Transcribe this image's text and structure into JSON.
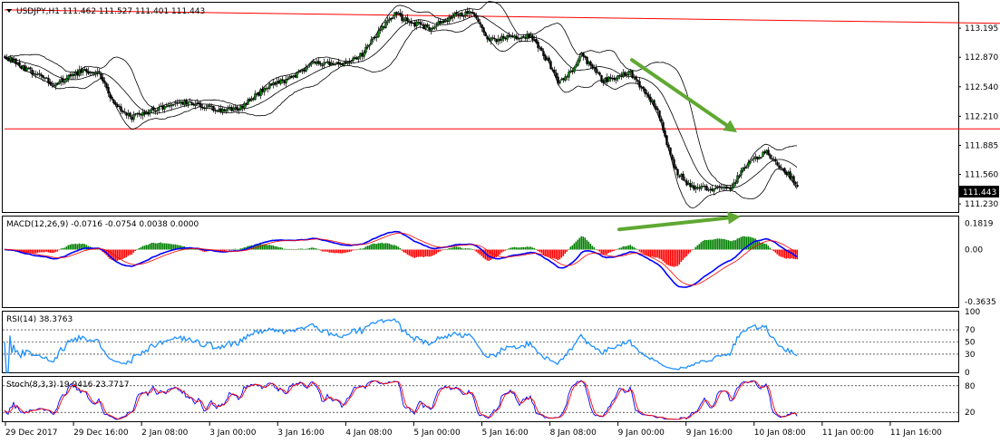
{
  "colors": {
    "bull": "#008000",
    "bear": "#ff0000",
    "candle_outline": "#000000",
    "band": "#000000",
    "trendline": "#ff0000",
    "arrow": "#5fa832",
    "macd_line": "#0000ff",
    "macd_signal": "#ff0000",
    "rsi": "#1e90ff",
    "stoch_main": "#0000ff",
    "stoch_signal": "#ff0000",
    "price_box": "#000000"
  },
  "chart_data": {
    "type": "candlestick",
    "symbol_header": "USDJPY,H1  111.462 111.527 111.401 111.443",
    "current_price_label": "111.443",
    "price_ylim": [
      111.14,
      113.48
    ],
    "price_ticks": [
      "113.195",
      "112.870",
      "112.540",
      "112.210",
      "111.885",
      "111.560",
      "111.230"
    ],
    "x_labels": [
      "29 Dec 2017",
      "29 Dec 16:00",
      "2 Jan 08:00",
      "3 Jan 00:00",
      "3 Jan 16:00",
      "4 Jan 08:00",
      "5 Jan 00:00",
      "5 Jan 16:00",
      "8 Jan 08:00",
      "9 Jan 00:00",
      "9 Jan 16:00",
      "10 Jan 08:00",
      "11 Jan 00:00",
      "11 Jan 16:00"
    ],
    "close_anchors": [
      [
        0,
        112.88
      ],
      [
        15,
        112.7
      ],
      [
        28,
        112.56
      ],
      [
        42,
        112.72
      ],
      [
        52,
        112.68
      ],
      [
        60,
        112.33
      ],
      [
        70,
        112.2
      ],
      [
        85,
        112.3
      ],
      [
        100,
        112.36
      ],
      [
        115,
        112.3
      ],
      [
        128,
        112.28
      ],
      [
        145,
        112.55
      ],
      [
        158,
        112.64
      ],
      [
        170,
        112.8
      ],
      [
        185,
        112.8
      ],
      [
        197,
        112.9
      ],
      [
        207,
        113.18
      ],
      [
        215,
        113.35
      ],
      [
        225,
        113.25
      ],
      [
        235,
        113.2
      ],
      [
        248,
        113.34
      ],
      [
        258,
        113.38
      ],
      [
        266,
        113.05
      ],
      [
        280,
        113.1
      ],
      [
        290,
        113.1
      ],
      [
        300,
        112.8
      ],
      [
        305,
        112.6
      ],
      [
        312,
        112.7
      ],
      [
        318,
        112.9
      ],
      [
        330,
        112.6
      ],
      [
        345,
        112.7
      ],
      [
        355,
        112.4
      ],
      [
        360,
        112.3
      ],
      [
        365,
        111.9
      ],
      [
        370,
        111.6
      ],
      [
        378,
        111.42
      ],
      [
        390,
        111.4
      ],
      [
        400,
        111.4
      ],
      [
        410,
        111.7
      ],
      [
        420,
        111.8
      ],
      [
        430,
        111.6
      ],
      [
        437,
        111.45
      ]
    ],
    "bollinger": {
      "period": 20,
      "deviations": 2
    },
    "trendlines": [
      {
        "from": [
          0,
          113.4
        ],
        "to": [
          549,
          113.25
        ]
      },
      {
        "from": [
          0,
          112.07
        ],
        "to": [
          549,
          112.07
        ]
      }
    ],
    "arrows": [
      {
        "panel": "price",
        "from": [
          346,
          112.84
        ],
        "to": [
          404,
          112.03
        ]
      },
      {
        "panel": "macd",
        "from": [
          339,
          0.14
        ],
        "to": [
          406,
          0.23
        ]
      }
    ],
    "macd": {
      "title": "MACD(12,26,9) -0.0716 -0.0754 0.0038 0.0000",
      "ylim": [
        -0.4,
        0.23
      ],
      "ticks": [
        "0.1819",
        "0.00",
        "-0.3635"
      ],
      "fast": 12,
      "slow": 26,
      "signal": 9
    },
    "rsi": {
      "title": "RSI(14) 38.3763",
      "period": 14,
      "ylim": [
        0,
        100
      ],
      "ticks": [
        "100",
        "70",
        "50",
        "30",
        "0"
      ],
      "levels": [
        70,
        50,
        30
      ]
    },
    "stoch": {
      "title": "Stoch(8,3,3) 19.9416 23.7717",
      "k": 8,
      "d": 3,
      "slowing": 3,
      "ylim": [
        0,
        100
      ],
      "ticks": [
        "80",
        "20"
      ],
      "levels": [
        80,
        20
      ]
    }
  }
}
